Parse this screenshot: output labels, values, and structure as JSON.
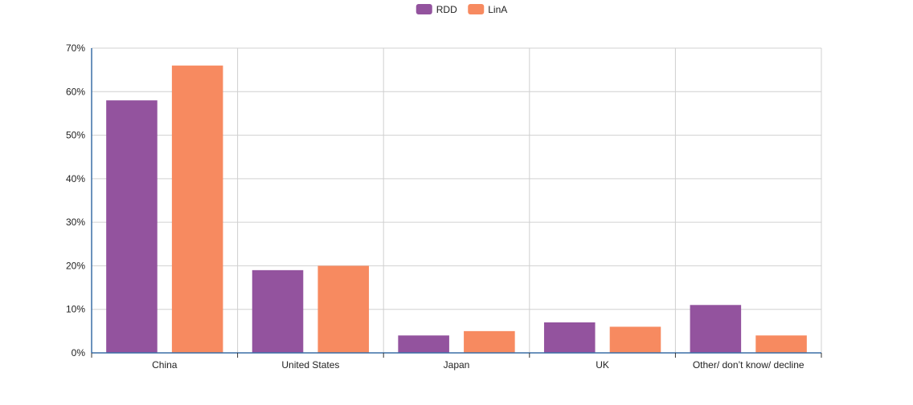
{
  "chart_data": {
    "type": "bar",
    "categories": [
      "China",
      "United States",
      "Japan",
      "UK",
      "Other/ don’t know/ decline"
    ],
    "series": [
      {
        "name": "RDD",
        "color": "#93539e",
        "values": [
          58,
          19,
          4,
          7,
          11
        ]
      },
      {
        "name": "LinA",
        "color": "#f78a60",
        "values": [
          66,
          20,
          5,
          6,
          4
        ]
      }
    ],
    "yticks": [
      "0%",
      "10%",
      "20%",
      "30%",
      "40%",
      "50%",
      "60%",
      "70%"
    ],
    "ylim": [
      0,
      70
    ],
    "grid": true,
    "legend_position": "top-center",
    "axis_color": "#3a6ea5",
    "grid_color": "#d0d0d0"
  }
}
